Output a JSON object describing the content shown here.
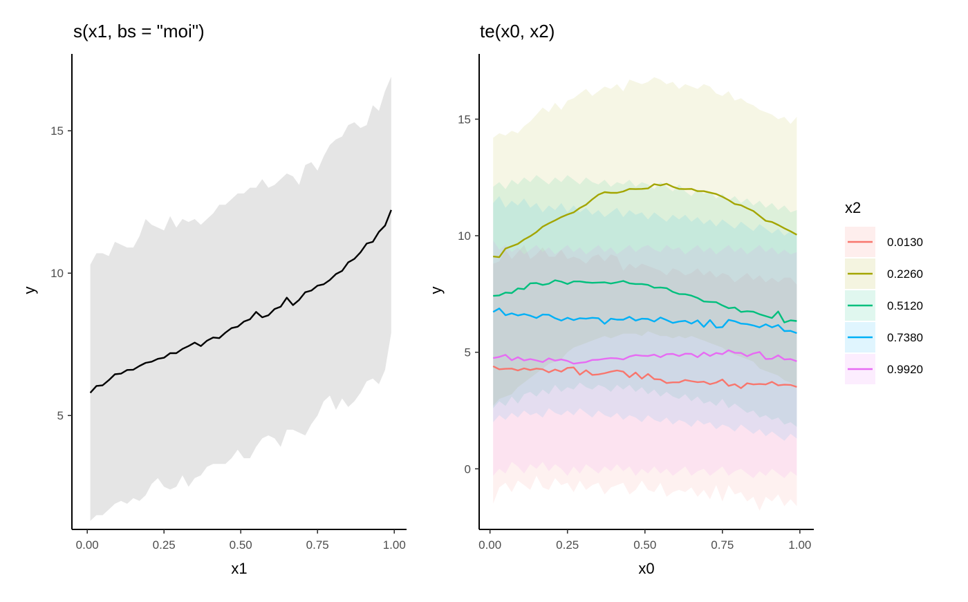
{
  "chart_data": [
    {
      "type": "line",
      "title": "s(x1, bs = \"moi\")",
      "xlabel": "x1",
      "ylabel": "y",
      "xlim": [
        -0.05,
        1.04
      ],
      "ylim": [
        1.0,
        17.7
      ],
      "xticks": [
        "0.00",
        "0.25",
        "0.50",
        "0.75",
        "1.00"
      ],
      "yticks": [
        "5",
        "10",
        "15"
      ],
      "band_color": "#e5e5e5",
      "line_color": "#000000",
      "series": [
        {
          "x": [
            0.01,
            0.03,
            0.05,
            0.07,
            0.09,
            0.11,
            0.13,
            0.15,
            0.17,
            0.19,
            0.21,
            0.23,
            0.25,
            0.27,
            0.29,
            0.31,
            0.33,
            0.35,
            0.37,
            0.39,
            0.41,
            0.43,
            0.45,
            0.47,
            0.49,
            0.51,
            0.53,
            0.55,
            0.57,
            0.59,
            0.61,
            0.63,
            0.65,
            0.67,
            0.69,
            0.71,
            0.73,
            0.75,
            0.77,
            0.79,
            0.81,
            0.83,
            0.85,
            0.87,
            0.89,
            0.91,
            0.93,
            0.95,
            0.97,
            0.99
          ],
          "y": [
            5.8,
            6.04,
            6.06,
            6.24,
            6.45,
            6.47,
            6.6,
            6.61,
            6.74,
            6.85,
            6.89,
            6.99,
            7.03,
            7.19,
            7.19,
            7.34,
            7.44,
            7.56,
            7.44,
            7.63,
            7.74,
            7.72,
            7.91,
            8.07,
            8.12,
            8.3,
            8.38,
            8.64,
            8.45,
            8.52,
            8.74,
            8.82,
            9.14,
            8.88,
            9.06,
            9.33,
            9.39,
            9.56,
            9.61,
            9.76,
            9.97,
            10.08,
            10.38,
            10.5,
            10.73,
            11.04,
            11.1,
            11.45,
            11.67,
            12.22
          ],
          "lower": [
            1.3,
            1.5,
            1.5,
            1.7,
            1.9,
            2.0,
            1.9,
            2.1,
            2.0,
            2.2,
            2.6,
            2.8,
            2.5,
            2.4,
            2.5,
            2.9,
            2.5,
            2.8,
            2.9,
            3.2,
            3.3,
            3.3,
            3.3,
            3.5,
            3.8,
            3.5,
            3.5,
            3.9,
            4.2,
            4.3,
            4.2,
            3.9,
            4.5,
            4.5,
            4.4,
            4.3,
            4.7,
            5.0,
            5.5,
            5.7,
            5.2,
            5.6,
            5.3,
            5.5,
            5.8,
            6.2,
            6.3,
            6.1,
            6.6,
            7.9
          ],
          "upper": [
            10.3,
            10.7,
            10.7,
            10.6,
            11.1,
            11.0,
            10.9,
            10.9,
            11.3,
            11.9,
            11.7,
            11.6,
            11.5,
            12.0,
            11.6,
            11.9,
            11.8,
            11.9,
            11.7,
            11.9,
            12.1,
            12.4,
            12.4,
            12.6,
            12.8,
            12.8,
            13.0,
            13.0,
            13.3,
            13.0,
            13.1,
            13.3,
            13.5,
            13.4,
            13.1,
            13.8,
            13.9,
            13.6,
            14.1,
            14.5,
            14.7,
            14.8,
            15.2,
            15.3,
            15.1,
            15.2,
            15.9,
            15.7,
            16.4,
            16.9
          ]
        }
      ]
    },
    {
      "type": "line",
      "title": "te(x0, x2)",
      "xlabel": "x0",
      "ylabel": "y",
      "xlim": [
        -0.035,
        1.045
      ],
      "ylim": [
        -2.6,
        17.8
      ],
      "xticks": [
        "0.00",
        "0.25",
        "0.50",
        "0.75",
        "1.00"
      ],
      "yticks": [
        "0",
        "5",
        "10",
        "15"
      ],
      "legend_title": "x2",
      "legend_position": "right",
      "band_opacity": 0.1,
      "x": [
        0.01,
        0.03,
        0.05,
        0.07,
        0.09,
        0.11,
        0.13,
        0.15,
        0.17,
        0.19,
        0.21,
        0.23,
        0.25,
        0.27,
        0.29,
        0.31,
        0.33,
        0.35,
        0.37,
        0.39,
        0.41,
        0.43,
        0.45,
        0.47,
        0.49,
        0.51,
        0.53,
        0.55,
        0.57,
        0.59,
        0.61,
        0.63,
        0.65,
        0.67,
        0.69,
        0.71,
        0.73,
        0.75,
        0.77,
        0.79,
        0.81,
        0.83,
        0.85,
        0.87,
        0.89,
        0.91,
        0.93,
        0.95,
        0.97,
        0.99
      ],
      "series": [
        {
          "name": "0.0130",
          "color": "#F8766D",
          "y": [
            4.4,
            4.27,
            4.29,
            4.3,
            4.22,
            4.31,
            4.24,
            4.3,
            4.27,
            4.14,
            4.26,
            4.17,
            4.33,
            4.35,
            4.04,
            4.23,
            4.03,
            4.05,
            4.1,
            4.17,
            4.22,
            4.17,
            3.93,
            4.13,
            3.87,
            4.07,
            3.85,
            3.83,
            3.68,
            3.71,
            3.71,
            3.81,
            3.76,
            3.72,
            3.74,
            3.63,
            3.7,
            3.83,
            3.56,
            3.63,
            3.46,
            3.67,
            3.62,
            3.64,
            3.62,
            3.73,
            3.58,
            3.61,
            3.6,
            3.51
          ],
          "lower": [
            -1.5,
            -0.8,
            -0.6,
            -1.0,
            -0.5,
            -0.7,
            -0.9,
            -0.3,
            -0.8,
            -0.9,
            -0.4,
            -0.7,
            -0.6,
            -1.0,
            -0.5,
            -0.9,
            -0.7,
            -0.6,
            -1.1,
            -0.8,
            -0.7,
            -0.6,
            -1.1,
            -0.9,
            -0.5,
            -0.9,
            -1.0,
            -0.6,
            -1.2,
            -1.0,
            -0.9,
            -1.0,
            -0.8,
            -1.2,
            -0.9,
            -1.3,
            -0.7,
            -1.4,
            -0.7,
            -1.1,
            -1.0,
            -1.4,
            -1.2,
            -1.8,
            -1.2,
            -1.4,
            -1.1,
            -1.6,
            -1.3,
            -1.6
          ],
          "upper": [
            8.8,
            8.9,
            9.4,
            9.0,
            9.3,
            9.6,
            9.0,
            9.2,
            9.5,
            9.1,
            9.1,
            9.4,
            9.0,
            9.1,
            9.0,
            8.8,
            9.1,
            9.2,
            8.9,
            9.2,
            9.1,
            8.5,
            8.8,
            8.6,
            8.8,
            8.7,
            8.6,
            8.5,
            8.3,
            8.6,
            8.5,
            8.3,
            8.4,
            8.6,
            8.3,
            8.5,
            8.2,
            8.4,
            8.3,
            8.0,
            8.2,
            8.4,
            8.1,
            8.3,
            8.0,
            8.2,
            8.0,
            8.2,
            8.2,
            7.9
          ]
        },
        {
          "name": "0.2260",
          "color": "#A3A500",
          "y": [
            9.11,
            9.08,
            9.45,
            9.55,
            9.65,
            9.84,
            9.98,
            10.16,
            10.39,
            10.53,
            10.66,
            10.8,
            10.91,
            11.0,
            11.19,
            11.33,
            11.56,
            11.76,
            11.87,
            11.84,
            11.84,
            11.9,
            12.01,
            12.0,
            12.01,
            12.03,
            12.21,
            12.16,
            12.23,
            12.1,
            12.01,
            12.0,
            12.01,
            11.91,
            11.91,
            11.85,
            11.79,
            11.67,
            11.53,
            11.36,
            11.31,
            11.18,
            11.06,
            10.85,
            10.64,
            10.59,
            10.46,
            10.32,
            10.19,
            10.04
          ],
          "lower": [
            2.7,
            3.0,
            3.1,
            3.2,
            3.5,
            3.7,
            3.9,
            4.1,
            4.3,
            4.5,
            4.6,
            4.7,
            5.0,
            5.2,
            5.3,
            5.4,
            5.5,
            5.6,
            5.7,
            5.6,
            5.7,
            5.8,
            5.8,
            5.8,
            5.7,
            5.9,
            5.8,
            5.7,
            5.7,
            5.6,
            5.7,
            5.6,
            5.7,
            5.6,
            5.5,
            5.4,
            5.3,
            5.2,
            5.0,
            4.9,
            4.8,
            4.7,
            4.6,
            4.3,
            4.2,
            4.1,
            4.0,
            3.8,
            3.7,
            3.5
          ],
          "upper": [
            14.2,
            14.4,
            14.3,
            14.5,
            14.4,
            14.7,
            14.9,
            15.2,
            15.5,
            15.3,
            15.7,
            15.4,
            15.8,
            15.9,
            16.1,
            16.3,
            16.0,
            16.2,
            16.4,
            16.3,
            16.5,
            16.2,
            16.7,
            16.6,
            16.5,
            16.6,
            16.8,
            16.7,
            16.5,
            16.6,
            16.3,
            16.5,
            16.4,
            16.3,
            16.5,
            16.4,
            16.1,
            16.0,
            16.2,
            15.8,
            15.9,
            15.7,
            15.6,
            15.4,
            15.3,
            15.2,
            15.0,
            15.1,
            14.8,
            15.1
          ]
        },
        {
          "name": "0.5120",
          "color": "#00BF7D",
          "y": [
            7.42,
            7.44,
            7.56,
            7.54,
            7.74,
            7.71,
            7.96,
            7.97,
            7.89,
            7.94,
            8.09,
            8.03,
            7.93,
            8.04,
            8.04,
            8.0,
            7.98,
            7.99,
            8.0,
            7.95,
            8.0,
            8.06,
            7.96,
            7.93,
            7.93,
            7.89,
            7.77,
            7.78,
            7.75,
            7.59,
            7.5,
            7.49,
            7.43,
            7.33,
            7.18,
            7.16,
            7.15,
            7.01,
            6.89,
            6.92,
            6.73,
            6.76,
            6.74,
            6.63,
            6.55,
            6.47,
            6.75,
            6.28,
            6.37,
            6.34
          ],
          "lower": [
            2.6,
            2.9,
            2.7,
            3.1,
            2.8,
            3.2,
            3.3,
            3.1,
            3.4,
            3.2,
            3.6,
            3.3,
            3.5,
            3.4,
            3.7,
            3.5,
            3.4,
            3.6,
            3.5,
            3.3,
            3.6,
            3.4,
            3.6,
            3.3,
            3.5,
            3.2,
            3.4,
            3.1,
            3.3,
            3.1,
            3.0,
            3.2,
            2.9,
            3.1,
            2.8,
            2.9,
            2.7,
            3.0,
            2.6,
            2.8,
            2.6,
            2.4,
            2.5,
            2.2,
            2.3,
            2.1,
            2.2,
            1.9,
            2.0,
            1.8
          ],
          "upper": [
            12.1,
            12.3,
            12.0,
            12.4,
            12.2,
            12.5,
            12.3,
            12.6,
            12.4,
            12.2,
            12.5,
            12.3,
            12.6,
            12.4,
            12.2,
            12.5,
            12.3,
            12.2,
            12.4,
            12.1,
            12.3,
            12.2,
            12.4,
            12.1,
            12.3,
            12.2,
            12.0,
            12.3,
            12.1,
            11.9,
            12.2,
            11.9,
            11.7,
            12.0,
            11.8,
            11.9,
            11.6,
            11.8,
            11.5,
            11.7,
            11.4,
            11.6,
            11.3,
            11.5,
            11.2,
            11.4,
            11.1,
            11.3,
            11.0,
            11.1
          ]
        },
        {
          "name": "0.7380",
          "color": "#00B0F6",
          "y": [
            6.73,
            6.88,
            6.59,
            6.67,
            6.58,
            6.64,
            6.57,
            6.47,
            6.62,
            6.61,
            6.46,
            6.36,
            6.48,
            6.38,
            6.46,
            6.44,
            6.48,
            6.46,
            6.22,
            6.44,
            6.4,
            6.4,
            6.52,
            6.36,
            6.44,
            6.43,
            6.32,
            6.49,
            6.38,
            6.26,
            6.32,
            6.35,
            6.23,
            6.37,
            6.09,
            6.38,
            6.06,
            6.08,
            6.39,
            6.33,
            6.23,
            6.21,
            6.15,
            6.07,
            6.2,
            6.07,
            6.17,
            5.91,
            5.92,
            5.82
          ],
          "lower": [
            2.0,
            2.3,
            2.1,
            2.4,
            2.2,
            2.5,
            2.3,
            2.4,
            2.2,
            2.6,
            2.4,
            2.3,
            2.5,
            2.3,
            2.6,
            2.4,
            2.2,
            2.5,
            2.3,
            2.2,
            2.4,
            2.1,
            2.3,
            2.2,
            2.0,
            2.3,
            2.1,
            2.0,
            2.2,
            1.9,
            2.1,
            2.0,
            1.8,
            2.1,
            1.9,
            2.0,
            1.7,
            1.9,
            1.8,
            1.6,
            1.9,
            1.7,
            1.5,
            1.7,
            1.4,
            1.6,
            1.4,
            1.2,
            1.5,
            1.3
          ],
          "upper": [
            11.4,
            11.7,
            11.2,
            11.5,
            11.3,
            11.6,
            11.2,
            11.4,
            11.0,
            11.3,
            11.1,
            11.4,
            11.0,
            11.3,
            11.0,
            11.2,
            10.9,
            11.1,
            10.8,
            11.0,
            11.2,
            10.8,
            11.1,
            10.9,
            11.0,
            10.7,
            11.0,
            10.8,
            10.6,
            10.9,
            10.7,
            10.9,
            10.6,
            10.8,
            10.5,
            10.7,
            10.4,
            10.7,
            10.5,
            10.3,
            10.6,
            10.4,
            10.2,
            10.5,
            10.3,
            10.1,
            10.3,
            10.0,
            10.2,
            10.0
          ]
        },
        {
          "name": "0.9920",
          "color": "#E76BF3",
          "y": [
            4.75,
            4.8,
            4.89,
            4.66,
            4.79,
            4.65,
            4.71,
            4.65,
            4.58,
            4.74,
            4.64,
            4.69,
            4.63,
            4.51,
            4.55,
            4.58,
            4.67,
            4.68,
            4.72,
            4.75,
            4.74,
            4.69,
            4.82,
            4.88,
            4.85,
            4.84,
            4.9,
            4.79,
            4.92,
            4.93,
            4.84,
            4.94,
            4.93,
            4.79,
            4.99,
            4.84,
            4.97,
            4.92,
            5.09,
            4.98,
            4.97,
            4.83,
            4.95,
            5.01,
            4.71,
            4.72,
            4.87,
            4.69,
            4.71,
            4.61
          ],
          "lower": [
            -0.3,
            0.0,
            -0.2,
            0.3,
            0.1,
            -0.2,
            0.2,
            0.0,
            0.3,
            -0.1,
            0.2,
            0.0,
            -0.3,
            0.1,
            -0.2,
            0.2,
            0.0,
            -0.2,
            0.1,
            -0.1,
            0.2,
            -0.1,
            0.1,
            -0.3,
            0.0,
            -0.2,
            0.1,
            -0.2,
            0.0,
            -0.3,
            -0.1,
            0.1,
            -0.3,
            -0.1,
            0.0,
            -0.3,
            -0.1,
            0.1,
            -0.3,
            -0.1,
            0.0,
            -0.2,
            -0.4,
            -0.1,
            -0.3,
            0.0,
            -0.2,
            -0.4,
            -0.1,
            -0.3
          ],
          "upper": [
            9.8,
            9.4,
            9.6,
            9.3,
            9.5,
            9.2,
            9.4,
            9.6,
            9.3,
            9.5,
            9.2,
            9.4,
            9.6,
            9.3,
            9.5,
            9.2,
            9.4,
            9.6,
            9.3,
            9.5,
            9.2,
            9.4,
            9.6,
            9.3,
            9.5,
            9.6,
            9.4,
            9.3,
            9.6,
            9.4,
            9.5,
            9.2,
            9.4,
            9.6,
            9.3,
            9.5,
            9.2,
            9.4,
            9.6,
            9.3,
            9.5,
            9.2,
            9.4,
            9.6,
            9.3,
            9.5,
            9.2,
            9.4,
            9.2,
            9.3
          ]
        }
      ]
    }
  ]
}
